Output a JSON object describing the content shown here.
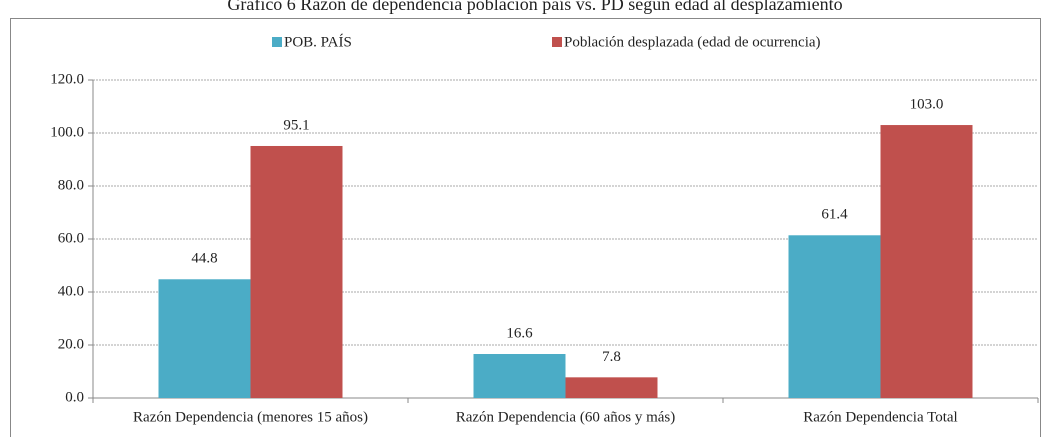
{
  "chart_data": {
    "type": "bar",
    "title": "Gráfico 6 Razón de dependencia población país vs. PD según edad al desplazamiento",
    "categories": [
      "Razón Dependencia (menores 15 años)",
      "Razón Dependencia (60 años y más)",
      "Razón Dependencia Total"
    ],
    "series": [
      {
        "name": "POB. PAÍS",
        "color": "#4bacc6",
        "values": [
          44.8,
          16.6,
          61.4
        ]
      },
      {
        "name": "Población desplazada (edad de ocurrencia)",
        "color": "#c0504d",
        "values": [
          95.1,
          7.8,
          103.0
        ],
        "value_labels": [
          "95.1",
          "7.8",
          "103.0"
        ]
      }
    ],
    "ylim": [
      0,
      120
    ],
    "yticks": [
      {
        "value": 0,
        "label": "0.0"
      },
      {
        "value": 20,
        "label": "20.0"
      },
      {
        "value": 40,
        "label": "40.0"
      },
      {
        "value": 60,
        "label": "60.0"
      },
      {
        "value": 80,
        "label": "80.0"
      },
      {
        "value": 100,
        "label": "100.0"
      },
      {
        "value": 120,
        "label": "120.0"
      }
    ],
    "grid": true,
    "legend": "top"
  }
}
